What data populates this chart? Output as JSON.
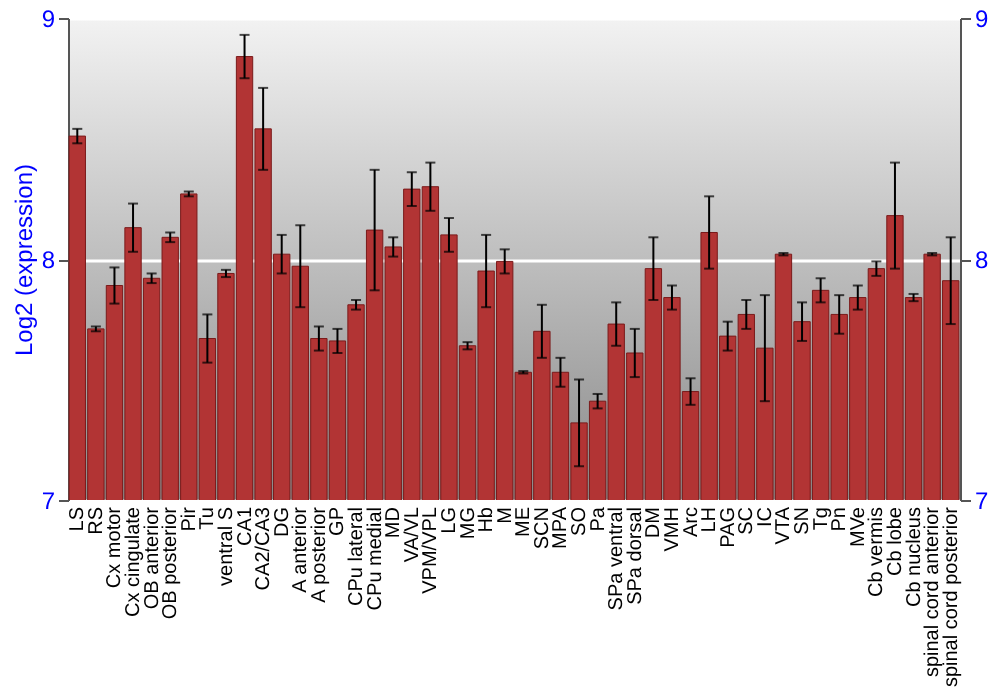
{
  "chart_data": {
    "type": "bar",
    "ylabel": "Log2 (expression)",
    "categories": [
      "LS",
      "RS",
      "Cx motor",
      "Cx cingulate",
      "OB anterior",
      "OB posterior",
      "Pir",
      "Tu",
      "ventral S",
      "CA1",
      "CA2/CA3",
      "DG",
      "A anterior",
      "A posterior",
      "GP",
      "CPu lateral",
      "CPu medial",
      "MD",
      "VA/VL",
      "VPM/VPL",
      "LG",
      "MG",
      "Hb",
      "M",
      "ME",
      "SCN",
      "MPA",
      "SO",
      "Pa",
      "SPa ventral",
      "SPa dorsal",
      "DM",
      "VMH",
      "Arc",
      "LH",
      "PAG",
      "SC",
      "IC",
      "VTA",
      "SN",
      "Tg",
      "Pn",
      "MVe",
      "Cb vermis",
      "Cb lobe",
      "Cb nucleus",
      "spinal cord anterior",
      "spinal cord posterior"
    ],
    "values": [
      8.51,
      7.71,
      7.89,
      8.13,
      7.92,
      8.09,
      8.27,
      7.67,
      7.94,
      8.84,
      8.54,
      8.02,
      7.97,
      7.67,
      7.66,
      7.81,
      8.12,
      8.05,
      8.29,
      8.3,
      8.1,
      7.64,
      7.95,
      7.99,
      7.53,
      7.7,
      7.53,
      7.32,
      7.41,
      7.73,
      7.61,
      7.96,
      7.84,
      7.45,
      8.11,
      7.68,
      7.77,
      7.63,
      8.02,
      7.74,
      7.87,
      7.77,
      7.84,
      7.96,
      8.18,
      7.84,
      8.02,
      7.91
    ],
    "errors": [
      0.03,
      0.01,
      0.075,
      0.1,
      0.02,
      0.02,
      0.01,
      0.1,
      0.015,
      0.09,
      0.17,
      0.08,
      0.17,
      0.05,
      0.05,
      0.02,
      0.25,
      0.04,
      0.07,
      0.1,
      0.07,
      0.015,
      0.15,
      0.05,
      0.005,
      0.11,
      0.06,
      0.18,
      0.03,
      0.09,
      0.1,
      0.13,
      0.05,
      0.055,
      0.15,
      0.06,
      0.06,
      0.22,
      0.005,
      0.08,
      0.05,
      0.08,
      0.05,
      0.03,
      0.22,
      0.015,
      0.005,
      0.18
    ],
    "color": "#b23434",
    "ylim": [
      7,
      9
    ],
    "yticks": [
      7,
      8,
      9
    ],
    "y2lim": [
      7,
      9
    ],
    "y2ticks": [
      7,
      8,
      9
    ],
    "grid": "y"
  }
}
